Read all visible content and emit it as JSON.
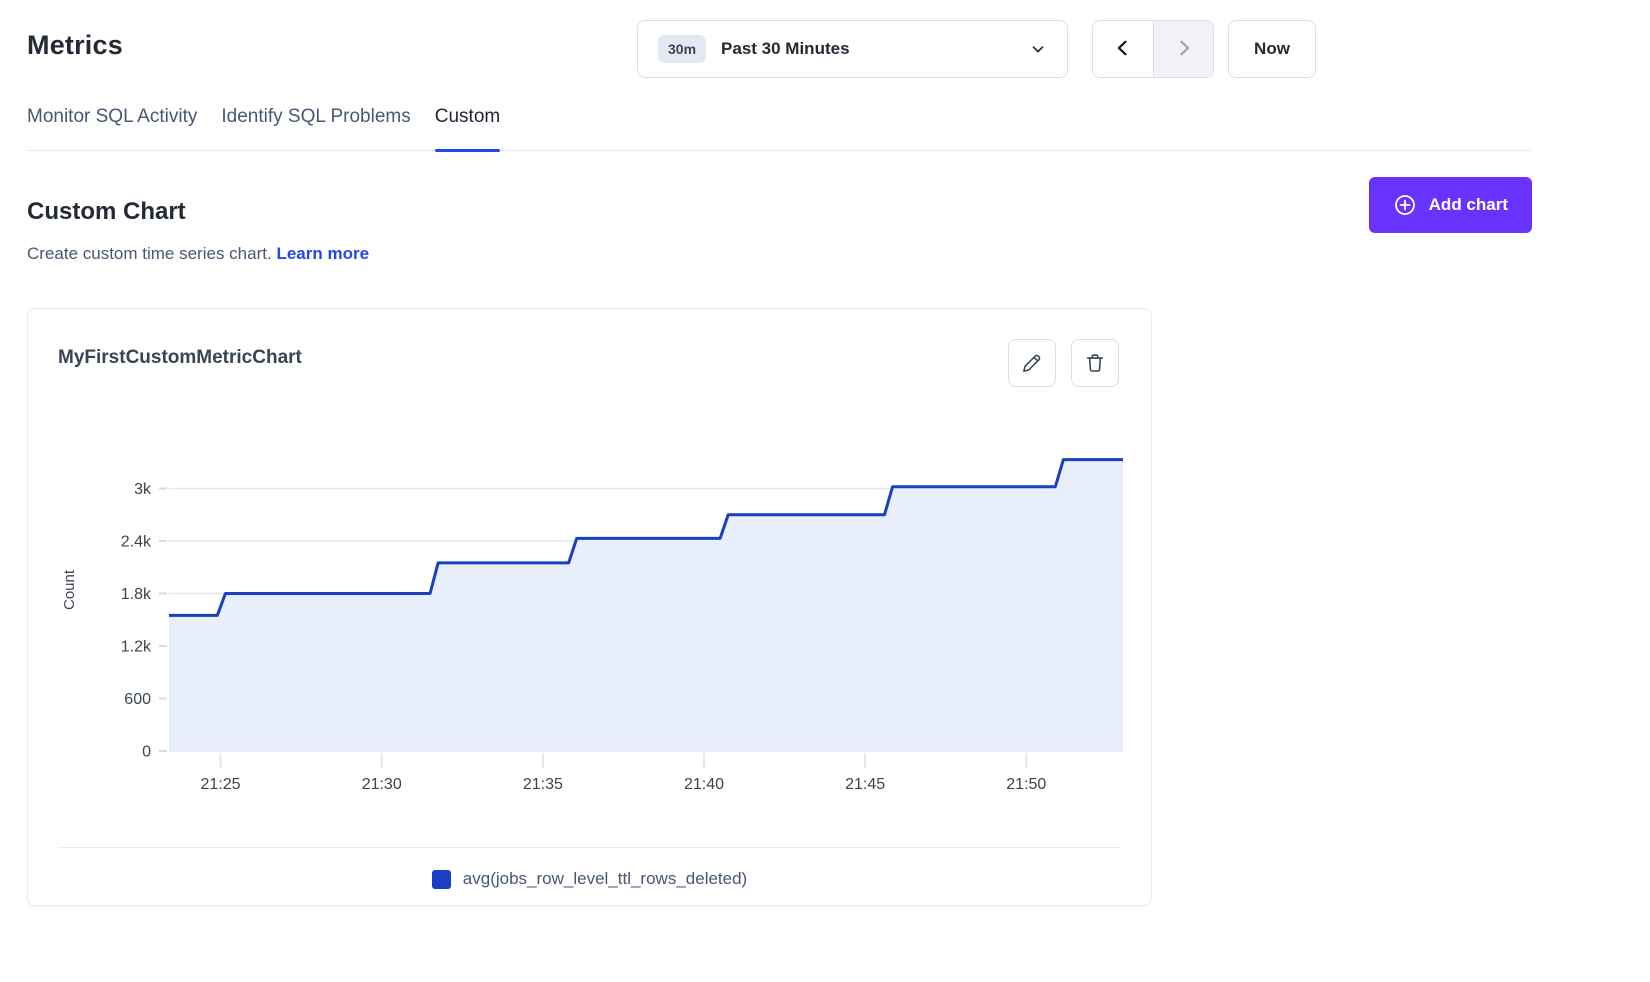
{
  "page": {
    "title": "Metrics"
  },
  "time_controls": {
    "range_badge": "30m",
    "range_label": "Past 30 Minutes",
    "prev_enabled": true,
    "next_enabled": false,
    "now_label": "Now"
  },
  "tabs": [
    {
      "label": "Monitor SQL Activity",
      "active": false
    },
    {
      "label": "Identify SQL Problems",
      "active": false
    },
    {
      "label": "Custom",
      "active": true
    }
  ],
  "section": {
    "title": "Custom Chart",
    "subtitle": "Create custom time series chart.",
    "link_label": "Learn more",
    "add_button_label": "Add chart"
  },
  "chart_card": {
    "title": "MyFirstCustomMetricChart"
  },
  "chart_data": {
    "type": "area",
    "title": "MyFirstCustomMetricChart",
    "ylabel": "Count",
    "xlabel": "",
    "grid": "horizontal",
    "legend_position": "bottom-center",
    "legend": [
      {
        "label": "avg(jobs_row_level_ttl_rows_deleted)",
        "color": "#1A3FC2"
      }
    ],
    "x_unit": "minutes after 21:00",
    "x_domain": [
      23.4,
      53.0
    ],
    "y_domain": [
      0,
      3680
    ],
    "x_ticks": [
      {
        "pos": 25,
        "label": "21:25"
      },
      {
        "pos": 30,
        "label": "21:30"
      },
      {
        "pos": 35,
        "label": "21:35"
      },
      {
        "pos": 40,
        "label": "21:40"
      },
      {
        "pos": 45,
        "label": "21:45"
      },
      {
        "pos": 50,
        "label": "21:50"
      }
    ],
    "y_ticks": [
      {
        "pos": 0,
        "label": "0"
      },
      {
        "pos": 600,
        "label": "600"
      },
      {
        "pos": 1200,
        "label": "1.2k"
      },
      {
        "pos": 1800,
        "label": "1.8k"
      },
      {
        "pos": 2400,
        "label": "2.4k"
      },
      {
        "pos": 3000,
        "label": "3k"
      }
    ],
    "points": [
      [
        23.4,
        1550
      ],
      [
        24.9,
        1550
      ],
      [
        25.15,
        1800
      ],
      [
        31.5,
        1800
      ],
      [
        31.75,
        2150
      ],
      [
        35.8,
        2150
      ],
      [
        36.05,
        2430
      ],
      [
        40.5,
        2430
      ],
      [
        40.75,
        2700
      ],
      [
        45.6,
        2700
      ],
      [
        45.85,
        3020
      ],
      [
        50.9,
        3020
      ],
      [
        51.15,
        3330
      ],
      [
        53.0,
        3330
      ]
    ],
    "line_color": "#1A3FC2",
    "fill_color": "#E9EEFB",
    "grid_color": "#E4E7EE",
    "tick_text_color": "#3A4352"
  },
  "colors": {
    "accent_purple": "#6933FF",
    "link_blue": "#2647E8",
    "heading": "#242A35",
    "body_text": "#475872",
    "border": "#D9DEEA",
    "card_border": "#E7EAF3"
  }
}
